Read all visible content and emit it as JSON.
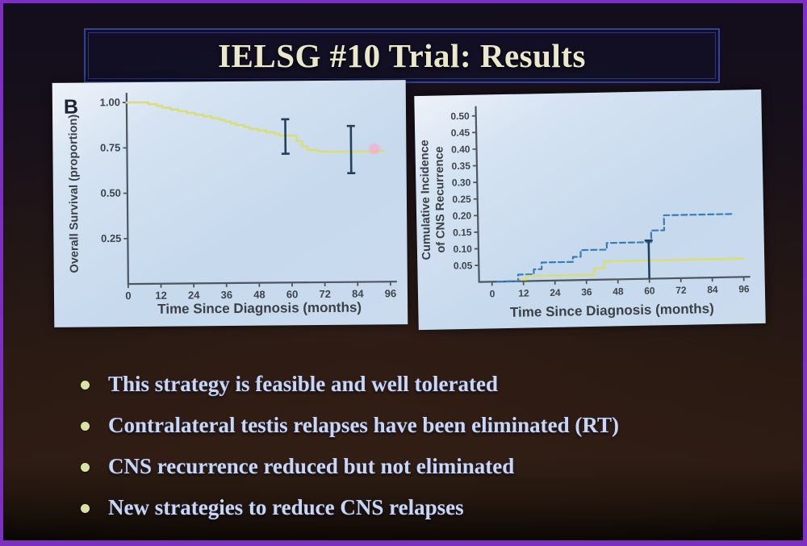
{
  "frame": {
    "border_color": "#7c2fc0"
  },
  "slide": {
    "title": "IELSG #10 Trial: Results",
    "bullets": [
      "This strategy is feasible and well tolerated",
      "Contralateral testis relapses have been eliminated (RT)",
      "CNS recurrence reduced but not eliminated",
      "New strategies to reduce CNS relapses"
    ]
  },
  "colors": {
    "title_text": "#eae8cc",
    "title_box_border": "#32419b",
    "bullet_text": "#cbd6f0",
    "bullet_dot": "#d8e4a4",
    "panel_background": "#c9dcf0",
    "axis": "#4e5660",
    "tick_text": "#3e444c",
    "survival_curve_yellow": "#d9de7a",
    "cns_curve_blue_dashed": "#3c7cb6",
    "error_bar": "#24415c"
  },
  "chart_data": [
    {
      "type": "line",
      "panel_label": "B",
      "title": "",
      "xlabel": "Time Since Diagnosis (months)",
      "ylabel_lines": [
        "Overall Survival (proportion)"
      ],
      "xlim": [
        0,
        96
      ],
      "xticks": [
        0,
        12,
        24,
        36,
        48,
        60,
        72,
        84,
        96
      ],
      "ylim": [
        0,
        1.0
      ],
      "yticks": [
        {
          "v": 1.0,
          "label": "1.00"
        },
        {
          "v": 0.75,
          "label": "0.75"
        },
        {
          "v": 0.5,
          "label": "0.50"
        },
        {
          "v": 0.25,
          "label": "0.25"
        }
      ],
      "grid": false,
      "legend": "none",
      "series": [
        {
          "name": "overall-survival-yellow-solid",
          "color": "#d9de7a",
          "dash": "solid",
          "width": 2.6,
          "points": [
            [
              0,
              1.0
            ],
            [
              8,
              0.99
            ],
            [
              11,
              0.98
            ],
            [
              13,
              0.97
            ],
            [
              16,
              0.96
            ],
            [
              19,
              0.95
            ],
            [
              22,
              0.94
            ],
            [
              25,
              0.93
            ],
            [
              28,
              0.92
            ],
            [
              31,
              0.91
            ],
            [
              34,
              0.9
            ],
            [
              36,
              0.89
            ],
            [
              38,
              0.88
            ],
            [
              40,
              0.87
            ],
            [
              43,
              0.86
            ],
            [
              45,
              0.85
            ],
            [
              48,
              0.84
            ],
            [
              51,
              0.83
            ],
            [
              54,
              0.82
            ],
            [
              56,
              0.81
            ],
            [
              62,
              0.78
            ],
            [
              64,
              0.75
            ],
            [
              66,
              0.73
            ],
            [
              70,
              0.72
            ],
            [
              94,
              0.72
            ]
          ]
        }
      ],
      "error_bars": [
        {
          "x": 58,
          "low": 0.71,
          "high": 0.9
        },
        {
          "x": 82,
          "low": 0.6,
          "high": 0.86
        }
      ]
    },
    {
      "type": "line",
      "panel_label": "",
      "title": "",
      "xlabel": "Time Since Diagnosis (months)",
      "ylabel_lines": [
        "Cumulative Incidence",
        "of CNS Recurrence"
      ],
      "xlim": [
        0,
        96
      ],
      "xticks": [
        0,
        12,
        24,
        36,
        48,
        60,
        72,
        84,
        96
      ],
      "ylim": [
        0,
        0.5
      ],
      "yticks": [
        {
          "v": 0.5,
          "label": "0.50"
        },
        {
          "v": 0.45,
          "label": "0.45"
        },
        {
          "v": 0.4,
          "label": "0.40"
        },
        {
          "v": 0.35,
          "label": "0.35"
        },
        {
          "v": 0.3,
          "label": "0.30"
        },
        {
          "v": 0.25,
          "label": "0.25"
        },
        {
          "v": 0.2,
          "label": "0.20"
        },
        {
          "v": 0.15,
          "label": "0.15"
        },
        {
          "v": 0.1,
          "label": "0.10"
        },
        {
          "v": 0.05,
          "label": "0.05"
        }
      ],
      "grid": false,
      "legend": "none",
      "series": [
        {
          "name": "cns-recurrence-blue-dashed",
          "color": "#3c7cb6",
          "dash": "dashed",
          "width": 2.2,
          "points": [
            [
              2,
              0.0
            ],
            [
              10,
              0.02
            ],
            [
              16,
              0.035
            ],
            [
              19,
              0.055
            ],
            [
              31,
              0.07
            ],
            [
              34,
              0.09
            ],
            [
              44,
              0.11
            ],
            [
              61,
              0.145
            ],
            [
              66,
              0.19
            ],
            [
              92,
              0.19
            ]
          ]
        },
        {
          "name": "cns-recurrence-yellow-solid",
          "color": "#d9de7a",
          "dash": "solid",
          "width": 2.6,
          "points": [
            [
              11,
              0.005
            ],
            [
              13,
              0.015
            ],
            [
              39,
              0.035
            ],
            [
              43,
              0.055
            ],
            [
              96,
              0.055
            ]
          ]
        }
      ],
      "marker": {
        "x": 60,
        "from": 0,
        "to": 0.115
      }
    }
  ]
}
